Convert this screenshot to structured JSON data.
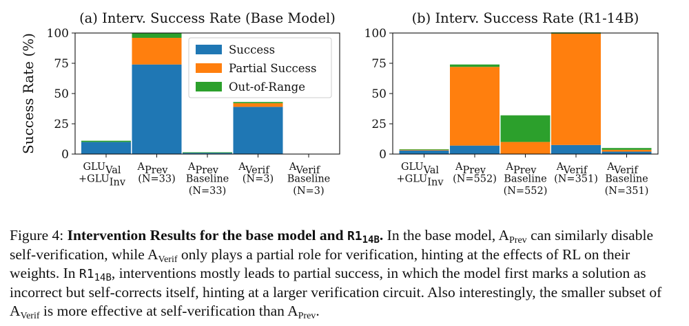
{
  "chart_data": [
    {
      "type": "bar",
      "stacked": true,
      "title": "(a) Interv. Success Rate (Base Model)",
      "ylabel": "Success Rate (%)",
      "ylim": [
        0,
        100
      ],
      "yticks": [
        0,
        25,
        50,
        75,
        100
      ],
      "categories": [
        {
          "lines": [
            {
              "text": "GLU",
              "sub": "Val"
            },
            {
              "text": "+GLU",
              "sub": "Inv"
            }
          ]
        },
        {
          "lines": [
            {
              "text": "A",
              "sub": "Prev"
            },
            {
              "text": "(N=33)"
            }
          ]
        },
        {
          "lines": [
            {
              "text": "A",
              "sub": "Prev"
            },
            {
              "text": "Baseline"
            },
            {
              "text": "(N=33)"
            }
          ]
        },
        {
          "lines": [
            {
              "text": "A",
              "sub": "Verif"
            },
            {
              "text": "(N=3)"
            }
          ]
        },
        {
          "lines": [
            {
              "text": "A",
              "sub": "Verif"
            },
            {
              "text": "Baseline"
            },
            {
              "text": "(N=3)"
            }
          ]
        }
      ],
      "series": [
        {
          "name": "Success",
          "color": "#1f77b4",
          "values": [
            10,
            74,
            1,
            39,
            0
          ]
        },
        {
          "name": "Partial Success",
          "color": "#ff7f0e",
          "values": [
            0,
            22,
            0,
            3,
            0
          ]
        },
        {
          "name": "Out-of-Range",
          "color": "#2ca02c",
          "values": [
            1,
            4,
            0.5,
            1,
            0
          ]
        }
      ],
      "legend": "top-right"
    },
    {
      "type": "bar",
      "stacked": true,
      "title": "(b) Interv. Success Rate (R1-14B)",
      "ylabel": "",
      "ylim": [
        0,
        100
      ],
      "yticks": [
        0,
        25,
        50,
        75,
        100
      ],
      "categories": [
        {
          "lines": [
            {
              "text": "GLU",
              "sub": "Val"
            },
            {
              "text": "+GLU",
              "sub": "Inv"
            }
          ]
        },
        {
          "lines": [
            {
              "text": "A",
              "sub": "Prev"
            },
            {
              "text": "(N=552)"
            }
          ]
        },
        {
          "lines": [
            {
              "text": "A",
              "sub": "Prev"
            },
            {
              "text": "Baseline"
            },
            {
              "text": "(N=552)"
            }
          ]
        },
        {
          "lines": [
            {
              "text": "A",
              "sub": "Verif"
            },
            {
              "text": "(N=351)"
            }
          ]
        },
        {
          "lines": [
            {
              "text": "A",
              "sub": "Verif"
            },
            {
              "text": "Baseline"
            },
            {
              "text": "(N=351)"
            }
          ]
        }
      ],
      "series": [
        {
          "name": "Success",
          "color": "#1f77b4",
          "values": [
            3,
            7,
            0,
            7.5,
            2
          ]
        },
        {
          "name": "Partial Success",
          "color": "#ff7f0e",
          "values": [
            0.5,
            65,
            10,
            92,
            1.5
          ]
        },
        {
          "name": "Out-of-Range",
          "color": "#2ca02c",
          "values": [
            0.5,
            2,
            22,
            1,
            1.5
          ]
        }
      ]
    }
  ],
  "caption": {
    "label": "Figure 4: ",
    "bold_title": "Intervention Results for the base model and ",
    "bold_code": "R1",
    "bold_code_sub": "14B",
    "bold_end": ".",
    "s1": " In the base model, A",
    "s1_sub": "Prev",
    "s2": " can similarly disable self-verification, while A",
    "s2_sub": "Verif",
    "s3": " only plays a partial role for verification, hinting at the effects of RL on their weights. In ",
    "code2": "R1",
    "code2_sub": "14B",
    "s4": ", interventions mostly leads to partial success, in which the model first marks a solution as incorrect but self-corrects itself, hinting at a larger verification circuit. Also interestingly, the smaller subset of A",
    "s4_sub": "Verif",
    "s5": " is more effective at self-verification than A",
    "s5_sub": "Prev",
    "s6": "."
  }
}
